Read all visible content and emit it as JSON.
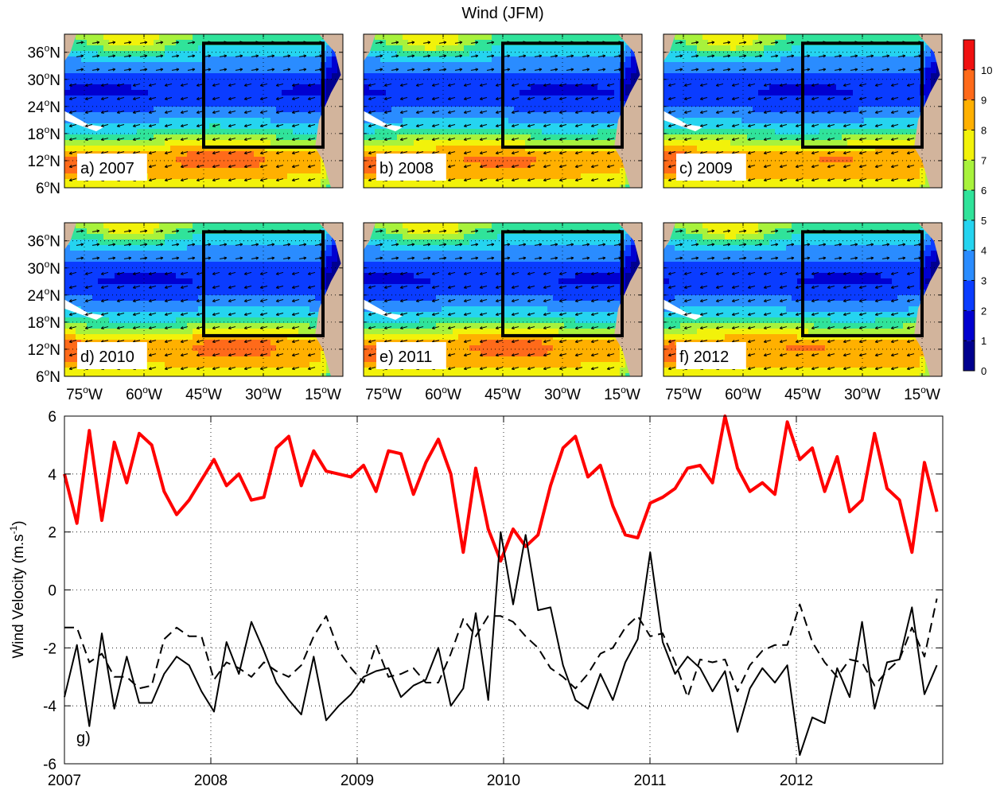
{
  "figure_title": "Wind (JFM)",
  "colorbar": {
    "ticks": [
      "0",
      "1",
      "2",
      "3",
      "4",
      "5",
      "6",
      "7",
      "8",
      "9",
      "10"
    ],
    "colors": [
      "#00008f",
      "#0000d0",
      "#0a3cff",
      "#2a8cff",
      "#25d4f0",
      "#30e39a",
      "#a8f23c",
      "#f2f20a",
      "#ffb000",
      "#ff6a1a",
      "#f01010",
      "#9a0000"
    ]
  },
  "map_axes": {
    "lat_ticks": [
      "6",
      "12",
      "18",
      "24",
      "30",
      "36"
    ],
    "lat_suffix": "N",
    "lon_ticks": [
      "75",
      "60",
      "45",
      "30",
      "15"
    ],
    "lon_suffix": "W",
    "deg": "o"
  },
  "panels": [
    {
      "label": "a) 2007"
    },
    {
      "label": "b) 2008"
    },
    {
      "label": "c) 2009"
    },
    {
      "label": "d) 2010"
    },
    {
      "label": "e) 2011"
    },
    {
      "label": "f) 2012"
    }
  ],
  "chart_data": [
    {
      "type": "heatmap",
      "description_fields": "six annual JFM wind speed maps, tropical/subtropical North Atlantic 6N-40N, 80W-10W, with box 45W-15W, 15N-38N",
      "panels": [
        "a) 2007",
        "b) 2008",
        "c) 2009",
        "d) 2010",
        "e) 2011",
        "f) 2012"
      ],
      "colorbar_range": [
        0,
        11
      ],
      "colorbar_ticks": [
        0,
        1,
        2,
        3,
        4,
        5,
        6,
        7,
        8,
        9,
        10
      ],
      "lat_range": [
        6,
        40
      ],
      "lon_range": [
        -80,
        -10
      ],
      "box": {
        "lon": [
          -45,
          -15
        ],
        "lat": [
          15,
          38
        ]
      }
    },
    {
      "type": "line",
      "panel_label": "g)",
      "ylabel": "Wind Velocity (m.s",
      "ylabel_sup": "-1",
      "ylabel_end": ")",
      "xlim": [
        2007,
        2013
      ],
      "ylim": [
        -6,
        6
      ],
      "xticks": [
        "2007",
        "2008",
        "2009",
        "2010",
        "2011",
        "2012"
      ],
      "yticks": [
        "-6",
        "-4",
        "-2",
        "0",
        "2",
        "4",
        "6"
      ],
      "grid": true,
      "series": [
        {
          "style": "red-thick",
          "color": "#ff0000",
          "values": [
            4.0,
            2.3,
            5.5,
            2.4,
            5.1,
            3.7,
            5.4,
            5.0,
            3.4,
            2.6,
            3.1,
            3.8,
            4.5,
            3.6,
            4.0,
            3.1,
            3.2,
            4.9,
            5.3,
            3.6,
            4.8,
            4.1,
            4.0,
            3.9,
            4.3,
            3.4,
            4.8,
            4.7,
            3.3,
            4.4,
            5.2,
            4.0,
            1.3,
            4.2,
            2.1,
            1.0,
            2.1,
            1.5,
            1.9,
            3.6,
            4.9,
            5.3,
            3.9,
            4.3,
            2.9,
            1.9,
            1.8,
            3.0,
            3.2,
            3.5,
            4.2,
            4.3,
            3.7,
            6.0,
            4.2,
            3.4,
            3.7,
            3.3,
            5.8,
            4.5,
            4.9,
            3.4,
            4.6,
            2.7,
            3.1,
            5.4,
            3.5,
            3.1,
            1.3,
            4.4,
            2.7
          ]
        },
        {
          "style": "black-solid",
          "color": "#000000",
          "values": [
            -3.7,
            -1.9,
            -4.7,
            -1.5,
            -4.1,
            -2.3,
            -3.9,
            -3.9,
            -2.9,
            -2.3,
            -2.6,
            -3.5,
            -4.2,
            -1.8,
            -2.9,
            -1.1,
            -2.1,
            -3.2,
            -3.8,
            -4.3,
            -2.3,
            -4.5,
            -4.0,
            -3.6,
            -3.0,
            -2.8,
            -2.7,
            -3.7,
            -3.3,
            -3.1,
            -2.0,
            -4.0,
            -3.4,
            -0.8,
            -3.8,
            2.0,
            -0.5,
            1.9,
            -0.7,
            -0.6,
            -2.6,
            -3.8,
            -4.1,
            -2.9,
            -3.8,
            -2.5,
            -1.7,
            1.3,
            -1.8,
            -2.9,
            -2.3,
            -2.7,
            -3.5,
            -2.8,
            -4.9,
            -3.4,
            -2.7,
            -3.2,
            -2.6,
            -5.7,
            -4.4,
            -4.6,
            -2.7,
            -3.7,
            -1.1,
            -4.1,
            -2.5,
            -2.4,
            -0.6,
            -3.6,
            -2.6
          ]
        },
        {
          "style": "black-dashed",
          "color": "#000000",
          "values": [
            -1.3,
            -1.3,
            -2.5,
            -2.2,
            -3.0,
            -3.0,
            -3.4,
            -3.3,
            -1.7,
            -1.3,
            -1.6,
            -1.6,
            -3.1,
            -2.5,
            -2.7,
            -3.0,
            -2.5,
            -2.8,
            -3.0,
            -2.6,
            -1.6,
            -0.9,
            -2.1,
            -2.7,
            -3.2,
            -1.9,
            -3.0,
            -2.9,
            -2.7,
            -3.2,
            -3.2,
            -2.2,
            -1.0,
            -1.6,
            -0.9,
            -0.9,
            -1.1,
            -1.6,
            -2.0,
            -2.7,
            -3.0,
            -3.4,
            -2.9,
            -2.2,
            -2.0,
            -1.3,
            -0.9,
            -1.6,
            -1.5,
            -2.5,
            -3.7,
            -2.4,
            -2.5,
            -2.4,
            -3.5,
            -2.6,
            -2.1,
            -1.9,
            -1.9,
            -0.5,
            -1.8,
            -2.5,
            -3.0,
            -2.4,
            -2.5,
            -3.3,
            -2.8,
            -2.4,
            -1.3,
            -2.3,
            -0.3
          ]
        }
      ]
    }
  ]
}
